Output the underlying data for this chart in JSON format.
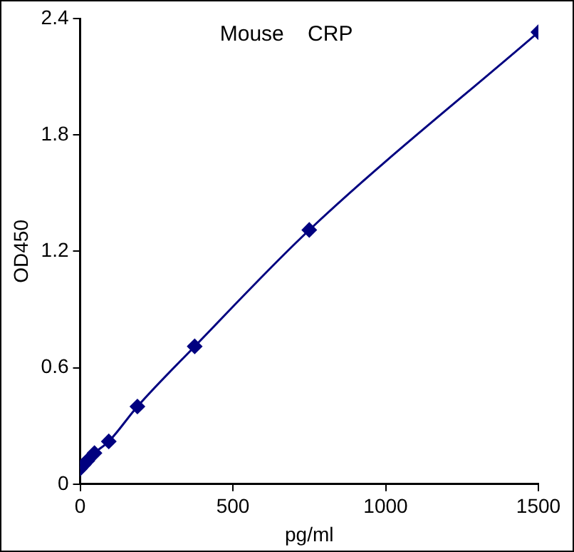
{
  "chart_data": {
    "type": "line",
    "title": "Mouse    CRP",
    "xlabel": "pg/ml",
    "ylabel": "OD450",
    "x": [
      0,
      11.7,
      23.4,
      46.9,
      93.75,
      187.5,
      375,
      750,
      1500
    ],
    "series": [
      {
        "color": "#000080",
        "values": [
          0.08,
          0.1,
          0.12,
          0.16,
          0.22,
          0.4,
          0.71,
          1.31,
          2.33
        ]
      }
    ],
    "xlim": [
      0,
      1500
    ],
    "xticks": [
      0,
      500,
      1000,
      1500
    ],
    "ylim": [
      0,
      2.4
    ],
    "yticks": [
      0,
      0.6,
      1.2,
      1.8,
      2.4
    ],
    "marker": "diamond",
    "line_style": "solid",
    "grid": false,
    "legend": false
  }
}
